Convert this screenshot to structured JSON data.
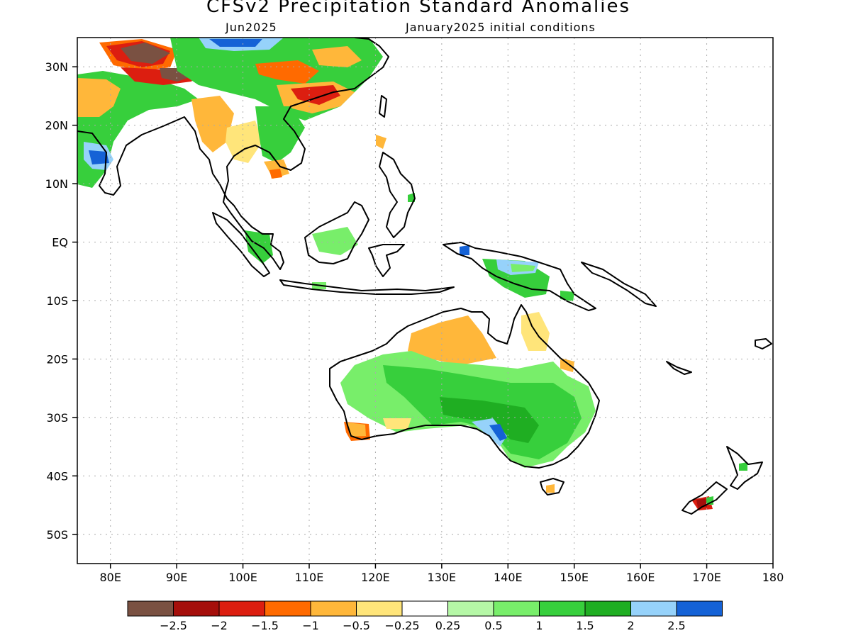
{
  "title": "CFSv2 Precipitation Standard Anomalies",
  "subtitle_month": "Jun2025",
  "subtitle_init": "January2025 initial conditions",
  "map": {
    "lon_range": [
      75,
      180
    ],
    "lat_range": [
      -55,
      35
    ],
    "lat_ticks": [
      "30N",
      "20N",
      "10N",
      "EQ",
      "10S",
      "20S",
      "30S",
      "40S",
      "50S"
    ],
    "lon_ticks": [
      "80E",
      "90E",
      "100E",
      "110E",
      "120E",
      "130E",
      "140E",
      "150E",
      "160E",
      "170E",
      "180"
    ],
    "gridlines": "dotted"
  },
  "colorbar": {
    "colors": [
      "#7a5142",
      "#a50f0b",
      "#dc1e10",
      "#ff6a00",
      "#ffb73a",
      "#ffe57a",
      "#ffffff",
      "#b5f7a6",
      "#78ee6a",
      "#37cf3c",
      "#1fae22",
      "#96d2fa",
      "#1562d6"
    ],
    "labels": [
      "−2.5",
      "−2",
      "−1.5",
      "−1",
      "−0.5",
      "−0.25",
      "0.25",
      "0.5",
      "1",
      "1.5",
      "2",
      "2.5"
    ]
  }
}
